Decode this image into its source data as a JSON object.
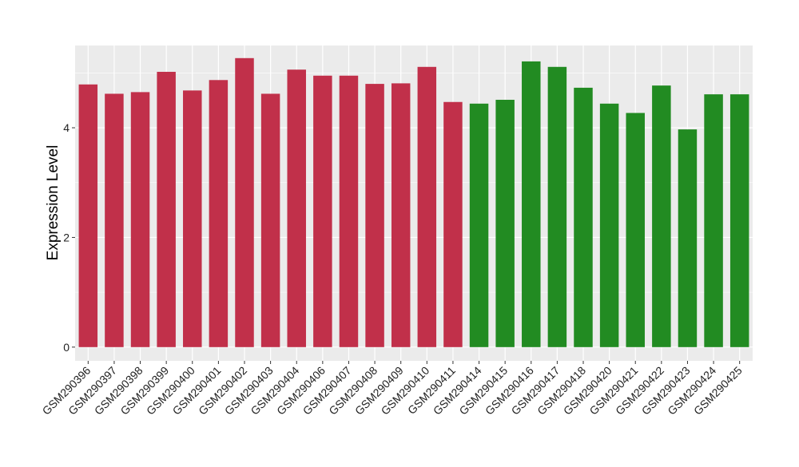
{
  "chart_data": {
    "type": "bar",
    "xlabel": "",
    "ylabel": "Expression Level",
    "ylim": [
      -0.25,
      5.5
    ],
    "yticks": [
      0,
      2,
      4
    ],
    "grid": true,
    "legend": "none",
    "categories": [
      "GSM290396",
      "GSM290397",
      "GSM290398",
      "GSM290399",
      "GSM290400",
      "GSM290401",
      "GSM290402",
      "GSM290403",
      "GSM290404",
      "GSM290406",
      "GSM290407",
      "GSM290408",
      "GSM290409",
      "GSM290410",
      "GSM290411",
      "GSM290414",
      "GSM290415",
      "GSM290416",
      "GSM290417",
      "GSM290418",
      "GSM290420",
      "GSM290421",
      "GSM290422",
      "GSM290423",
      "GSM290424",
      "GSM290425"
    ],
    "values": [
      4.79,
      4.62,
      4.65,
      5.02,
      4.68,
      4.87,
      5.27,
      4.62,
      5.06,
      4.95,
      4.95,
      4.8,
      4.81,
      5.11,
      4.47,
      4.44,
      4.51,
      5.21,
      5.11,
      4.73,
      4.44,
      4.27,
      4.77,
      3.97,
      4.61,
      4.61
    ],
    "group_colors": [
      "#C1304A",
      "#C1304A",
      "#C1304A",
      "#C1304A",
      "#C1304A",
      "#C1304A",
      "#C1304A",
      "#C1304A",
      "#C1304A",
      "#C1304A",
      "#C1304A",
      "#C1304A",
      "#C1304A",
      "#C1304A",
      "#C1304A",
      "#228B22",
      "#228B22",
      "#228B22",
      "#228B22",
      "#228B22",
      "#228B22",
      "#228B22",
      "#228B22",
      "#228B22",
      "#228B22",
      "#228B22"
    ],
    "panel_background": "#EBEBEB",
    "grid_color": "#FFFFFF"
  }
}
